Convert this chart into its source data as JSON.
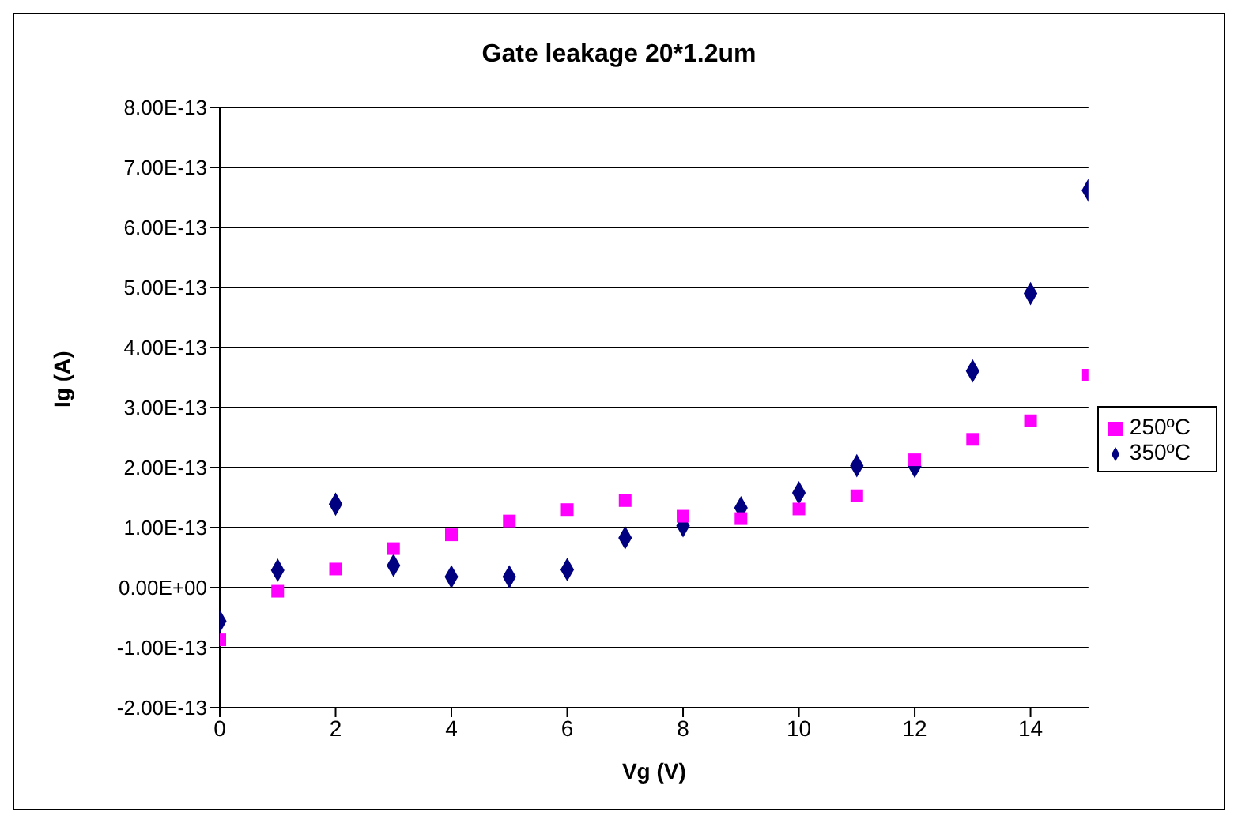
{
  "chart_data": {
    "type": "scatter",
    "title": "Gate leakage 20*1.2um",
    "xlabel": "Vg (V)",
    "ylabel": "Ig (A)",
    "x": [
      0,
      1,
      2,
      3,
      4,
      5,
      6,
      7,
      8,
      9,
      10,
      11,
      12,
      13,
      14,
      15
    ],
    "series": [
      {
        "name": "350ºC",
        "color": "#000080",
        "marker": "diamond",
        "values": [
          -5.6e-14,
          2.9e-14,
          1.39e-13,
          3.7e-14,
          1.8e-14,
          1.8e-14,
          3e-14,
          8.3e-14,
          1.03e-13,
          1.33e-13,
          1.58e-13,
          2.03e-13,
          2.02e-13,
          3.61e-13,
          4.9e-13,
          6.62e-13
        ]
      },
      {
        "name": "250ºC",
        "color": "#ff00ff",
        "marker": "square",
        "values": [
          -8.7e-14,
          -6e-15,
          3.1e-14,
          6.5e-14,
          8.8e-14,
          1.11e-13,
          1.3e-13,
          1.45e-13,
          1.19e-13,
          1.15e-13,
          1.31e-13,
          1.53e-13,
          2.13e-13,
          2.47e-13,
          2.78e-13,
          3.54e-13
        ]
      }
    ],
    "xlim": [
      0,
      15
    ],
    "xticks": [
      0,
      2,
      4,
      6,
      8,
      10,
      12,
      14
    ],
    "ylim": [
      -2e-13,
      8e-13
    ],
    "yticks": [
      {
        "value": -2e-13,
        "label": "-2.00E-13"
      },
      {
        "value": -1e-13,
        "label": "-1.00E-13"
      },
      {
        "value": 0,
        "label": "0.00E+00"
      },
      {
        "value": 1e-13,
        "label": "1.00E-13"
      },
      {
        "value": 2e-13,
        "label": "2.00E-13"
      },
      {
        "value": 3e-13,
        "label": "3.00E-13"
      },
      {
        "value": 4e-13,
        "label": "4.00E-13"
      },
      {
        "value": 5e-13,
        "label": "5.00E-13"
      },
      {
        "value": 6e-13,
        "label": "6.00E-13"
      },
      {
        "value": 7e-13,
        "label": "7.00E-13"
      },
      {
        "value": 8e-13,
        "label": "8.00E-13"
      }
    ],
    "grid": "y",
    "legend": "right"
  }
}
